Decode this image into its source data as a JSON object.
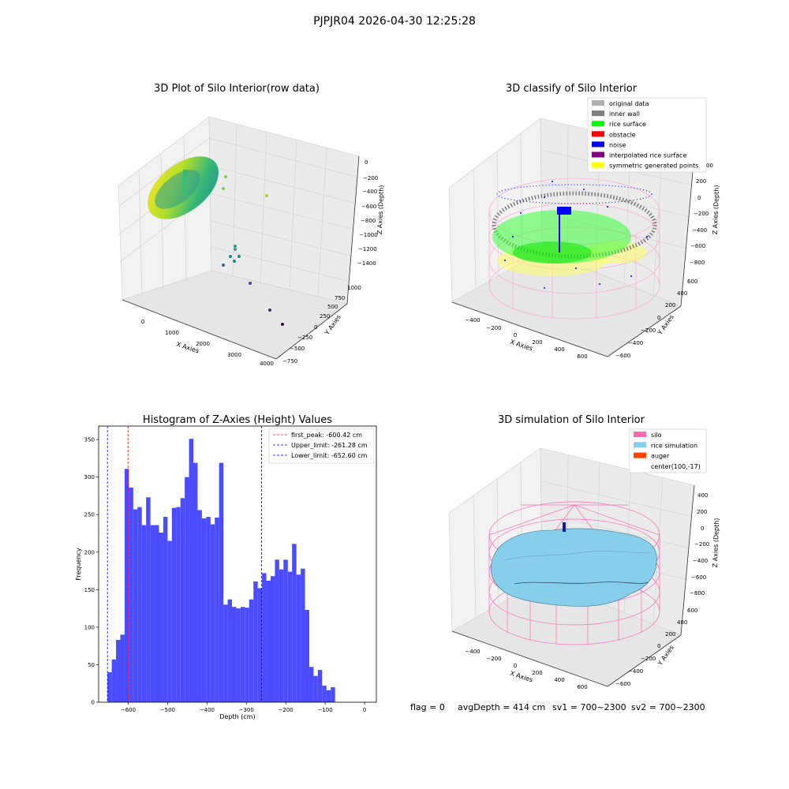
{
  "suptitle": "PJPJR04 2026-04-30 12:25:28",
  "status_line": {
    "flag": "flag = 0",
    "avg": "avgDepth = 414 cm",
    "sv1": "sv1 = 700~2300",
    "sv2": "sv2 = 700~2300"
  },
  "colors": {
    "grey_pane": "#f2f2f2",
    "hist_bar": "#4b4bff",
    "silo": "#ff69b4",
    "rice_sim": "#87ceeb",
    "auger": "#ff4500"
  },
  "chart_data": [
    {
      "type": "scatter",
      "projection": "3d",
      "title": "3D Plot of Silo Interior(row data)",
      "xlabel": "X Axies",
      "ylabel": "Y Axies",
      "zlabel": "Z Axies (Depth)",
      "x_ticks": [
        "0",
        "1000",
        "2000",
        "3000",
        "4000"
      ],
      "y_ticks": [
        "−750",
        "−500",
        "−250",
        "0",
        "250",
        "500",
        "750",
        "1000"
      ],
      "z_ticks": [
        "0",
        "−200",
        "−400",
        "−600",
        "−800",
        "−1000",
        "−1200",
        "−1400"
      ],
      "colormap": "viridis"
    },
    {
      "type": "scatter",
      "projection": "3d",
      "title": "3D classify of Silo Interior",
      "xlabel": "X Axies",
      "ylabel": "Y Axies",
      "zlabel": "Z Axies (Depth)",
      "x_ticks": [
        "−400",
        "−200",
        "0",
        "200",
        "400",
        "600"
      ],
      "y_ticks": [
        "−600",
        "−400",
        "−200",
        "0",
        "200",
        "400",
        "600"
      ],
      "z_ticks": [
        "200",
        "0",
        "−200",
        "−400",
        "−600",
        "−800"
      ],
      "z_ticks_extra": "00",
      "legend_position": "upper right",
      "legend": [
        {
          "label": "original data",
          "color": "#b0b0b0"
        },
        {
          "label": "inner wall",
          "color": "#808080"
        },
        {
          "label": "rice surface",
          "color": "#00ff00"
        },
        {
          "label": "obstacle",
          "color": "#ff0000"
        },
        {
          "label": "noise",
          "color": "#0000ff"
        },
        {
          "label": "interpolated rice surface",
          "color": "#800080"
        },
        {
          "label": "symmetric generated points",
          "color": "#ffff00"
        }
      ]
    },
    {
      "type": "bar",
      "title": "Histogram of Z-Axies (Height) Values",
      "xlabel": "Depth (cm)",
      "ylabel": "Frequency",
      "xlim": [
        -675,
        30
      ],
      "ylim": [
        0,
        368
      ],
      "x_ticks": [
        -600,
        -500,
        -400,
        -300,
        -200,
        -100,
        0
      ],
      "x_tick_labels": [
        "−600",
        "−500",
        "−400",
        "−300",
        "−200",
        "−100",
        "0"
      ],
      "y_ticks": [
        0,
        50,
        100,
        150,
        200,
        250,
        300,
        350
      ],
      "bin_width": 10.9,
      "bin_start": -652.6,
      "values": [
        40,
        57,
        83,
        90,
        311,
        286,
        257,
        260,
        236,
        273,
        236,
        236,
        226,
        247,
        215,
        259,
        260,
        272,
        300,
        351,
        319,
        256,
        245,
        247,
        237,
        246,
        319,
        130,
        137,
        127,
        125,
        127,
        126,
        137,
        161,
        152,
        172,
        162,
        168,
        190,
        177,
        190,
        174,
        211,
        170,
        178,
        123,
        47,
        35,
        43,
        22,
        16,
        20
      ],
      "bar_color": "#4b4bff",
      "vlines": [
        {
          "x": -600.42,
          "color": "#ff0000",
          "label": "first_peak: -600.42 cm"
        },
        {
          "x": -261.28,
          "color": "#0000cc",
          "label": "Upper_limit: -261.28 cm"
        },
        {
          "x": -652.6,
          "color": "#0000cc",
          "label": "Lower_limit: -652.60 cm"
        }
      ],
      "legend_position": "upper right"
    },
    {
      "type": "area",
      "projection": "3d",
      "title": "3D simulation of Silo Interior",
      "xlabel": "X Axies",
      "ylabel": "Y Axies",
      "zlabel": "Z Axies (Depth)",
      "x_ticks": [
        "−400",
        "−200",
        "0",
        "200",
        "400",
        "600"
      ],
      "y_ticks": [
        "−600",
        "−400",
        "−200",
        "0",
        "200",
        "400",
        "600"
      ],
      "z_ticks": [
        "400",
        "200",
        "0",
        "−200",
        "−400",
        "−600",
        "−800"
      ],
      "legend_position": "upper right",
      "legend": [
        {
          "label": "silo",
          "color": "#ff69b4"
        },
        {
          "label": "rice simulation",
          "color": "#87ceeb"
        },
        {
          "label": "auger",
          "color": "#ff4500"
        },
        {
          "label": "center(100,-17)",
          "color": "none"
        }
      ]
    }
  ]
}
